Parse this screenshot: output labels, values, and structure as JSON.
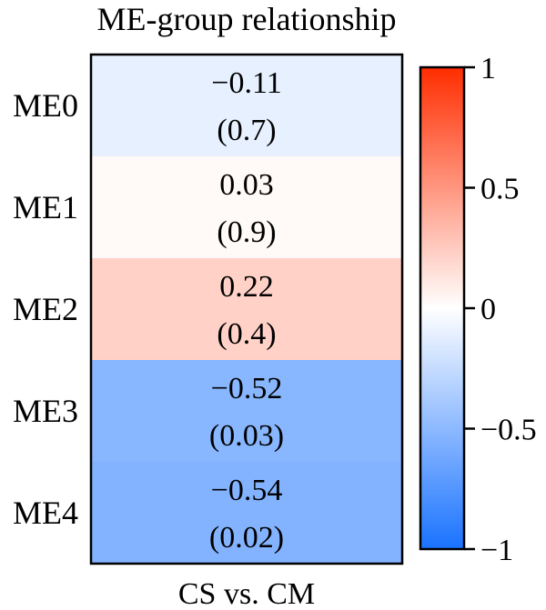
{
  "chart_data": {
    "type": "heatmap",
    "title": "ME-group relationship",
    "xlabel": "",
    "ylabel": "",
    "columns": [
      "CS vs. CM"
    ],
    "rows": [
      "ME0",
      "ME1",
      "ME2",
      "ME3",
      "ME4"
    ],
    "values": [
      -0.11,
      0.03,
      0.22,
      -0.52,
      -0.54
    ],
    "value_labels": [
      "−0.11",
      "0.03",
      "0.22",
      "−0.52",
      "−0.54"
    ],
    "p_labels": [
      "(0.7)",
      "(0.9)",
      "(0.4)",
      "(0.03)",
      "(0.02)"
    ],
    "p_values": [
      0.7,
      0.9,
      0.4,
      0.03,
      0.02
    ],
    "colorbar": {
      "range": [
        -1,
        1
      ],
      "ticks": [
        1,
        0.5,
        0,
        -0.5,
        -1
      ],
      "tick_labels": [
        "1",
        "0.5",
        "0",
        "−0.5",
        "−1"
      ],
      "colors": {
        "negative": "#1a73ff",
        "zero": "#ffffff",
        "positive": "#ff2d00"
      }
    },
    "grid": false,
    "legend": "right"
  }
}
